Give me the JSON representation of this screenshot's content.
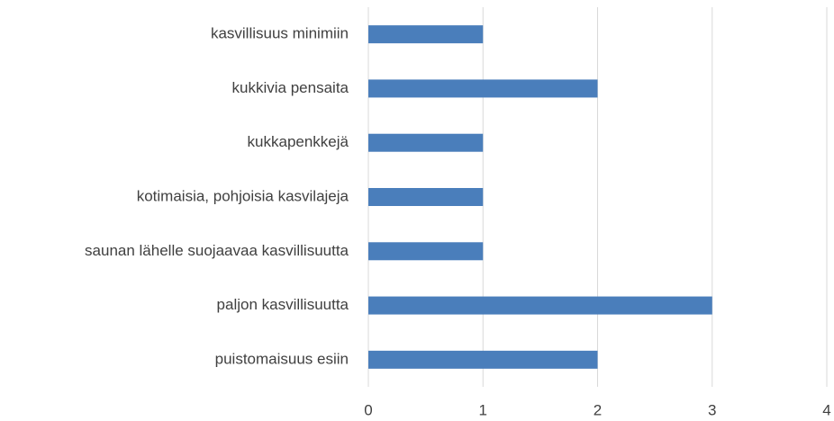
{
  "chart_data": {
    "type": "barh",
    "categories": [
      "kasvillisuus minimiin",
      "kukkivia pensaita",
      "kukkapenkkejä",
      "kotimaisia, pohjoisia kasvilajeja",
      "saunan lähelle suojaavaa kasvillisuutta",
      "paljon kasvillisuutta",
      "puistomaisuus esiin"
    ],
    "values": [
      1,
      2,
      1,
      1,
      1,
      3,
      2
    ],
    "color": "#4a7ebb",
    "xlim": [
      0,
      4
    ],
    "xticks": [
      0,
      1,
      2,
      3,
      4
    ],
    "grid": true
  }
}
